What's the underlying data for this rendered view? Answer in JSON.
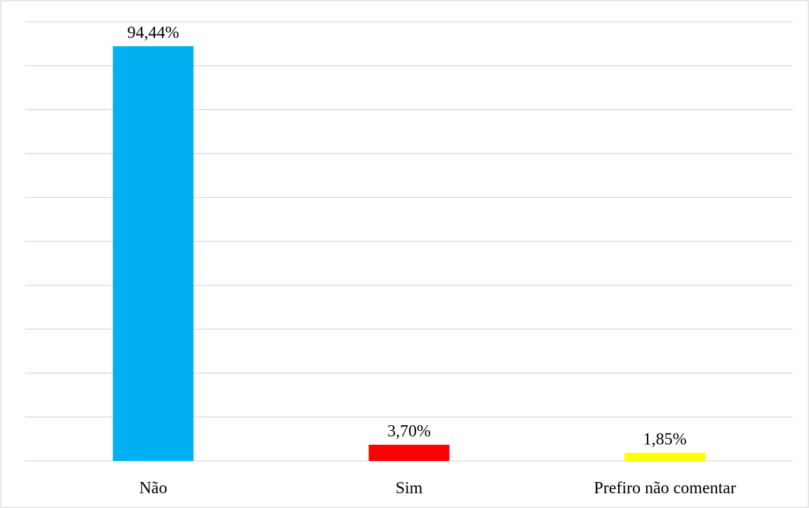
{
  "chart_data": {
    "type": "bar",
    "categories": [
      "Não",
      "Sim",
      "Prefiro não comentar"
    ],
    "values": [
      94.44,
      3.7,
      1.85
    ],
    "data_labels": [
      "94,44%",
      "3,70%",
      "1,85%"
    ],
    "colors": [
      "#00b0f0",
      "#ff0000",
      "#ffff00"
    ],
    "title": "",
    "xlabel": "",
    "ylabel": "",
    "ylim": [
      0,
      100
    ],
    "gridlines": true,
    "gridline_step": 10,
    "y_tick_labels_visible": false,
    "legend": "none"
  }
}
